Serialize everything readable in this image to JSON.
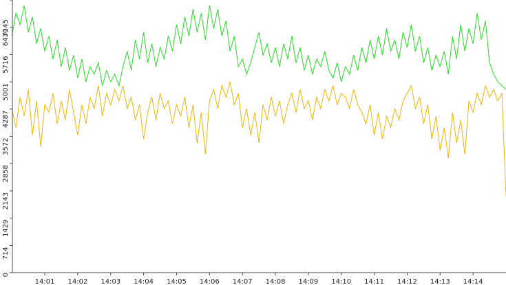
{
  "chart_data": {
    "type": "line",
    "xlim": [
      0,
      15
    ],
    "xticks": [
      {
        "value": 1,
        "label": "14:01"
      },
      {
        "value": 2,
        "label": "14:02"
      },
      {
        "value": 3,
        "label": "14:03"
      },
      {
        "value": 4,
        "label": "14:04"
      },
      {
        "value": 5,
        "label": "14:05"
      },
      {
        "value": 6,
        "label": "14:06"
      },
      {
        "value": 7,
        "label": "14:07"
      },
      {
        "value": 8,
        "label": "14:08"
      },
      {
        "value": 9,
        "label": "14:09"
      },
      {
        "value": 10,
        "label": "14:10"
      },
      {
        "value": 11,
        "label": "14:11"
      },
      {
        "value": 12,
        "label": "14:12"
      },
      {
        "value": 13,
        "label": "14:13"
      },
      {
        "value": 14,
        "label": "14:14"
      }
    ],
    "ylim": [
      0,
      7145
    ],
    "yticks": [
      0,
      714,
      1429,
      2143,
      2858,
      3572,
      4287,
      5001,
      5716,
      6430,
      7145
    ],
    "x": [
      0,
      0.125,
      0.25,
      0.375,
      0.5,
      0.625,
      0.75,
      0.875,
      1,
      1.125,
      1.25,
      1.375,
      1.5,
      1.625,
      1.75,
      1.875,
      2,
      2.125,
      2.25,
      2.375,
      2.5,
      2.625,
      2.75,
      2.875,
      3,
      3.125,
      3.25,
      3.375,
      3.5,
      3.625,
      3.75,
      3.875,
      4,
      4.125,
      4.25,
      4.375,
      4.5,
      4.625,
      4.75,
      4.875,
      5,
      5.125,
      5.25,
      5.375,
      5.5,
      5.625,
      5.75,
      5.875,
      6,
      6.125,
      6.25,
      6.375,
      6.5,
      6.625,
      6.75,
      6.875,
      7,
      7.125,
      7.25,
      7.375,
      7.5,
      7.625,
      7.75,
      7.875,
      8,
      8.125,
      8.25,
      8.375,
      8.5,
      8.625,
      8.75,
      8.875,
      9,
      9.125,
      9.25,
      9.375,
      9.5,
      9.625,
      9.75,
      9.875,
      10,
      10.125,
      10.25,
      10.375,
      10.5,
      10.625,
      10.75,
      10.875,
      11,
      11.125,
      11.25,
      11.375,
      11.5,
      11.625,
      11.75,
      11.875,
      12,
      12.125,
      12.25,
      12.375,
      12.5,
      12.625,
      12.75,
      12.875,
      13,
      13.125,
      13.25,
      13.375,
      13.5,
      13.625,
      13.75,
      13.875,
      14,
      14.125,
      14.25,
      14.375,
      14.5,
      14.625,
      14.75,
      14.875,
      15
    ],
    "series": [
      {
        "color": "#22dd22",
        "values": [
          6200,
          6800,
          6500,
          7000,
          6300,
          6700,
          6000,
          6400,
          5800,
          6200,
          5600,
          6100,
          5400,
          5900,
          5300,
          5700,
          5100,
          5600,
          5000,
          5400,
          5200,
          5500,
          4900,
          5300,
          5000,
          5200,
          4900,
          5400,
          5800,
          5300,
          6100,
          5600,
          6300,
          5500,
          6000,
          5400,
          5900,
          5600,
          6200,
          5800,
          6500,
          6000,
          6700,
          6200,
          6900,
          6300,
          6800,
          6100,
          7000,
          6400,
          6900,
          6200,
          6600,
          5800,
          6200,
          5400,
          5600,
          5200,
          5500,
          5900,
          6300,
          5700,
          6000,
          5500,
          5900,
          5400,
          6000,
          5600,
          6200,
          5500,
          5900,
          5300,
          5700,
          5200,
          5600,
          5400,
          5800,
          5300,
          5100,
          5500,
          5000,
          5400,
          5200,
          5700,
          5300,
          5900,
          5500,
          6100,
          5600,
          6200,
          5700,
          6400,
          5800,
          6100,
          5600,
          6300,
          5900,
          6500,
          5800,
          6200,
          5500,
          5900,
          5300,
          5700,
          5400,
          5800,
          5200,
          6200,
          5600,
          6500,
          5800,
          6400,
          6000,
          6800,
          6100,
          6600,
          5500,
          5200,
          5000,
          4900,
          4800
        ]
      },
      {
        "color": "#f0b400",
        "values": [
          4300,
          3800,
          4600,
          4100,
          4800,
          3600,
          4500,
          3300,
          4400,
          4200,
          4700,
          3900,
          4500,
          4000,
          4800,
          4200,
          3600,
          4400,
          3900,
          4600,
          4300,
          4900,
          4100,
          4700,
          4400,
          4800,
          4500,
          4900,
          4300,
          4600,
          4000,
          4400,
          3500,
          4200,
          4600,
          4000,
          4700,
          4300,
          4500,
          3900,
          4400,
          4100,
          4600,
          3800,
          4400,
          3400,
          4200,
          3100,
          4500,
          4800,
          4300,
          4900,
          4600,
          5000,
          4400,
          4700,
          3800,
          4300,
          3600,
          4200,
          3400,
          4400,
          4000,
          4600,
          4100,
          4500,
          3900,
          4400,
          4700,
          4200,
          4800,
          4300,
          4500,
          4000,
          4600,
          4300,
          4800,
          4500,
          4900,
          4400,
          4700,
          4600,
          4300,
          4800,
          4400,
          4200,
          3900,
          4400,
          3600,
          4200,
          3500,
          4100,
          3800,
          4300,
          4000,
          4500,
          4700,
          4900,
          4300,
          4600,
          3900,
          4400,
          3500,
          4100,
          3200,
          3800,
          3000,
          4200,
          3400,
          4000,
          3100,
          4500,
          4200,
          4700,
          4400,
          4900,
          4600,
          4800,
          4500,
          4700,
          2000
        ]
      }
    ]
  }
}
